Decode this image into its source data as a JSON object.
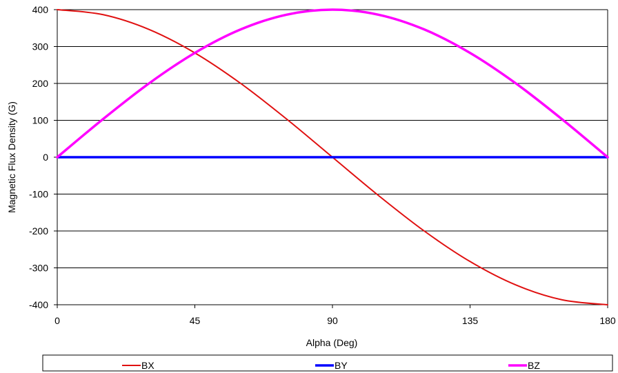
{
  "chart_data": {
    "type": "line",
    "title": "",
    "xlabel": "Alpha (Deg)",
    "ylabel": "Magnetic Flux Density (G)",
    "xlim": [
      0,
      180
    ],
    "ylim": [
      -400,
      400
    ],
    "x_ticks": [
      0,
      45,
      90,
      135,
      180
    ],
    "y_ticks": [
      400,
      300,
      200,
      100,
      0,
      -100,
      -200,
      -300,
      -400
    ],
    "grid": "horizontal",
    "legend_position": "bottom",
    "x": [
      0,
      15,
      30,
      45,
      60,
      75,
      90,
      105,
      120,
      135,
      150,
      165,
      180
    ],
    "series": [
      {
        "name": "BX",
        "color": "#e01010",
        "values": [
          400,
          386.4,
          346.4,
          282.8,
          200,
          103.5,
          0,
          -103.5,
          -200,
          -282.8,
          -346.4,
          -386.4,
          -400
        ]
      },
      {
        "name": "BY",
        "color": "#0000ff",
        "values": [
          0,
          0,
          0,
          0,
          0,
          0,
          0,
          0,
          0,
          0,
          0,
          0,
          0
        ]
      },
      {
        "name": "BZ",
        "color": "#ff00ff",
        "values": [
          0,
          103.5,
          200,
          282.8,
          346.4,
          386.4,
          400,
          386.4,
          346.4,
          282.8,
          200,
          103.5,
          0
        ]
      }
    ]
  }
}
